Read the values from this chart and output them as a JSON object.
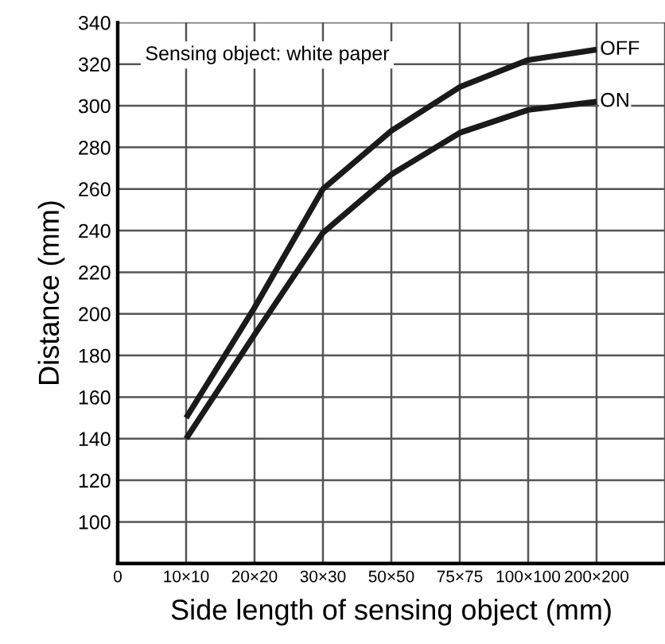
{
  "chart_data": {
    "type": "line",
    "xlabel": "Side length of sensing object (mm)",
    "ylabel": "Distance (mm)",
    "categories": [
      "0",
      "10×10",
      "20×20",
      "30×30",
      "50×50",
      "75×75",
      "100×100",
      "200×200",
      null
    ],
    "series": [
      {
        "name": "OFF",
        "color": "#1a1a1a",
        "values": [
          null,
          150,
          203,
          260,
          288,
          309,
          322,
          327,
          null
        ]
      },
      {
        "name": "ON",
        "color": "#1a1a1a",
        "values": [
          null,
          140,
          190,
          239,
          267,
          287,
          298,
          302,
          null
        ]
      }
    ],
    "ylim": [
      80,
      340
    ],
    "yticks": [
      100,
      120,
      140,
      160,
      180,
      200,
      220,
      240,
      260,
      280,
      300,
      320,
      340
    ],
    "grid": true,
    "marker": "none",
    "line_style": "solid",
    "legend": false,
    "annotations": [
      "Sensing object: white paper"
    ]
  }
}
